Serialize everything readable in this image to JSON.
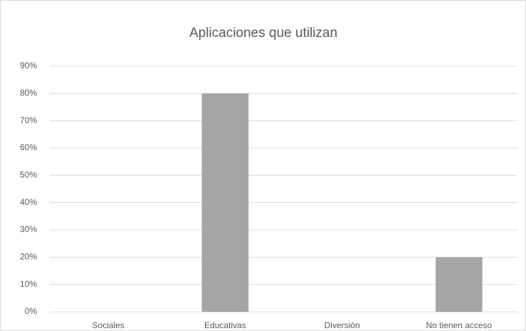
{
  "chart_data": {
    "type": "bar",
    "title": "Aplicaciones que utilizan",
    "categories": [
      "Sociales",
      "Educativas",
      "Diversiòn",
      "No tienen acceso"
    ],
    "values": [
      0,
      80,
      0,
      20
    ],
    "color": "#a5a5a5",
    "ylim": [
      0,
      90
    ],
    "yticks": [
      {
        "value": 0,
        "label": "0%"
      },
      {
        "value": 10,
        "label": "10%"
      },
      {
        "value": 20,
        "label": "20%"
      },
      {
        "value": 30,
        "label": "30%"
      },
      {
        "value": 40,
        "label": "40%"
      },
      {
        "value": 50,
        "label": "50%"
      },
      {
        "value": 60,
        "label": "60%"
      },
      {
        "value": 70,
        "label": "70%"
      },
      {
        "value": 80,
        "label": "80%"
      },
      {
        "value": 90,
        "label": "90%"
      }
    ],
    "grid": true
  }
}
